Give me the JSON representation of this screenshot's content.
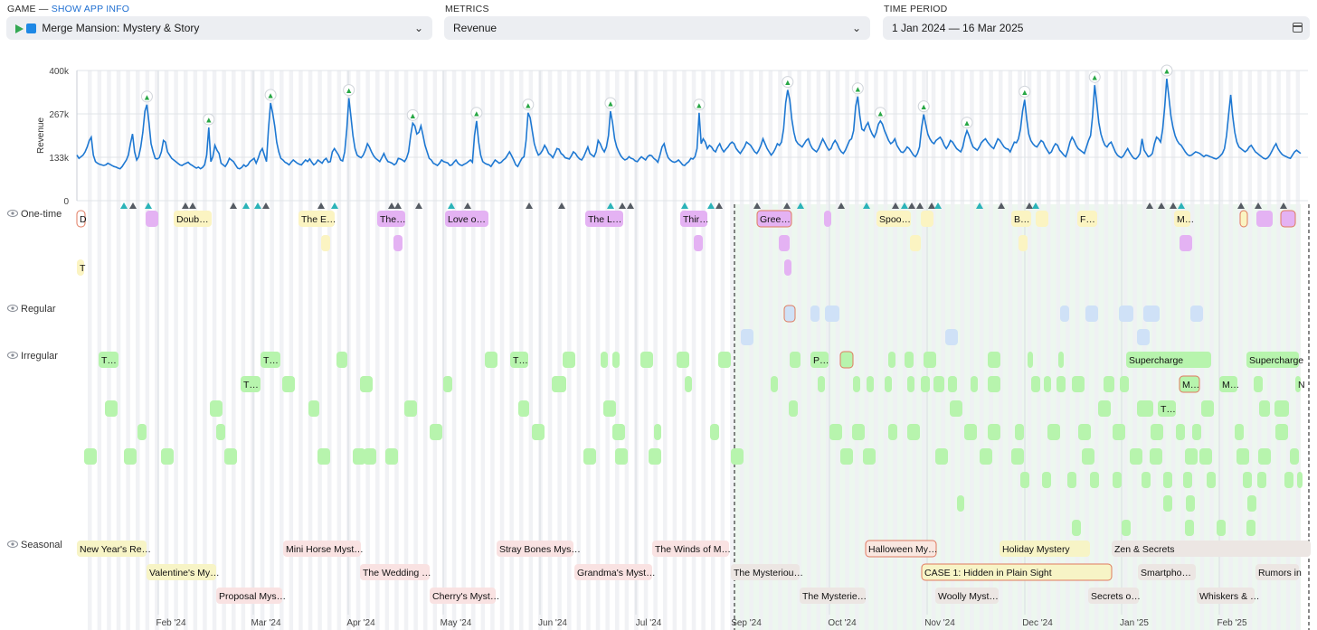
{
  "filters": {
    "game": {
      "label": "GAME",
      "separator": "—",
      "link": "SHOW APP INFO",
      "value": "Merge Mansion: Mystery & Story"
    },
    "metrics": {
      "label": "METRICS",
      "value": "Revenue"
    },
    "period": {
      "label": "TIME PERIOD",
      "value": "1 Jan 2024 — 16 Mar 2025"
    }
  },
  "icons": {
    "game_stores": [
      "google-play-icon",
      "app-store-icon"
    ],
    "dropdown": "chevron-down-icon",
    "calendar": "calendar-icon",
    "visibility": "eye-icon"
  },
  "colors": {
    "line": "#1e78d2",
    "one_time_yellow": "#fbf4c2",
    "one_time_purple": "#e4b2f3",
    "regular": "#cfe1f7",
    "irregular": "#b7f4ad",
    "seasonal_pink": "#f9e2e2",
    "seasonal_yellow": "#f7f4c6",
    "seasonal_gray": "#ece6e3",
    "highlight": "#edf7ef",
    "spike_marker": "#28a745"
  },
  "chart_data": {
    "type": "line",
    "ylabel": "Revenue",
    "yticks": [
      "0",
      "133k",
      "267k",
      "400k"
    ],
    "ylim": [
      0,
      400000
    ],
    "xlim": [
      "2024-01-01",
      "2025-03-16"
    ],
    "xticks": [
      "Feb '24",
      "Mar '24",
      "Apr '24",
      "May '24",
      "Jun '24",
      "Jul '24",
      "Sep '24",
      "Oct '24",
      "Nov '24",
      "Dec '24",
      "Jan '25",
      "Feb '25"
    ],
    "grid": true,
    "series": [
      {
        "values": [
          140000,
          130000,
          135000,
          140000,
          150000,
          165000,
          185000,
          195000,
          140000,
          120000,
          115000,
          112000,
          110000,
          108000,
          110000,
          115000,
          112000,
          108000,
          105000,
          103000,
          100000,
          98000,
          105000,
          115000,
          125000,
          140000,
          175000,
          205000,
          150000,
          125000,
          135000,
          165000,
          210000,
          275000,
          295000,
          240000,
          175000,
          150000,
          130000,
          128000,
          132000,
          150000,
          185000,
          180000,
          150000,
          140000,
          130000,
          125000,
          120000,
          115000,
          110000,
          108000,
          112000,
          115000,
          118000,
          112000,
          108000,
          104000,
          100000,
          103000,
          98000,
          102000,
          110000,
          140000,
          225000,
          120000,
          135000,
          170000,
          155000,
          145000,
          115000,
          110000,
          105000,
          115000,
          130000,
          125000,
          120000,
          110000,
          100000,
          98000,
          102000,
          110000,
          105000,
          110000,
          120000,
          125000,
          130000,
          115000,
          130000,
          150000,
          160000,
          140000,
          120000,
          220000,
          300000,
          270000,
          230000,
          180000,
          150000,
          130000,
          125000,
          118000,
          115000,
          110000,
          118000,
          125000,
          120000,
          115000,
          112000,
          110000,
          118000,
          125000,
          120000,
          128000,
          118000,
          110000,
          115000,
          125000,
          120000,
          115000,
          125000,
          130000,
          118000,
          120000,
          150000,
          160000,
          150000,
          140000,
          125000,
          122000,
          150000,
          220000,
          315000,
          260000,
          200000,
          160000,
          140000,
          135000,
          132000,
          140000,
          155000,
          175000,
          165000,
          150000,
          138000,
          130000,
          125000,
          120000,
          132000,
          145000,
          130000,
          120000,
          118000,
          115000,
          110000,
          115000,
          130000,
          128000,
          125000,
          120000,
          130000,
          150000,
          200000,
          238000,
          230000,
          205000,
          210000,
          230000,
          200000,
          170000,
          150000,
          130000,
          125000,
          115000,
          112000,
          108000,
          115000,
          125000,
          120000,
          118000,
          116000,
          108000,
          110000,
          118000,
          125000,
          115000,
          110000,
          108000,
          112000,
          115000,
          120000,
          125000,
          118000,
          200000,
          245000,
          180000,
          140000,
          120000,
          115000,
          112000,
          110000,
          105000,
          115000,
          125000,
          120000,
          115000,
          118000,
          125000,
          130000,
          140000,
          150000,
          138000,
          125000,
          110000,
          105000,
          118000,
          130000,
          135000,
          185000,
          270000,
          255000,
          215000,
          175000,
          155000,
          140000,
          145000,
          155000,
          170000,
          160000,
          145000,
          140000,
          132000,
          145000,
          160000,
          158000,
          145000,
          140000,
          132000,
          130000,
          128000,
          138000,
          150000,
          145000,
          135000,
          128000,
          125000,
          135000,
          150000,
          165000,
          145000,
          140000,
          135000,
          150000,
          185000,
          175000,
          160000,
          150000,
          165000,
          200000,
          275000,
          240000,
          190000,
          165000,
          150000,
          138000,
          130000,
          125000,
          128000,
          135000,
          130000,
          128000,
          122000,
          120000,
          128000,
          135000,
          130000,
          125000,
          135000,
          140000,
          138000,
          130000,
          125000,
          118000,
          140000,
          165000,
          175000,
          150000,
          132000,
          125000,
          120000,
          118000,
          120000,
          125000,
          118000,
          110000,
          108000,
          115000,
          120000,
          130000,
          128000,
          135000,
          160000,
          270000,
          175000,
          190000,
          180000,
          160000,
          170000,
          165000,
          155000,
          150000,
          165000,
          175000,
          160000,
          150000,
          158000,
          165000,
          175000,
          180000,
          175000,
          160000,
          152000,
          145000,
          155000,
          165000,
          180000,
          175000,
          170000,
          160000,
          150000,
          145000,
          155000,
          170000,
          190000,
          175000,
          160000,
          150000,
          140000,
          148000,
          160000,
          175000,
          170000,
          180000,
          220000,
          300000,
          340000,
          310000,
          250000,
          210000,
          185000,
          175000,
          170000,
          165000,
          175000,
          185000,
          190000,
          172000,
          160000,
          155000,
          150000,
          160000,
          175000,
          190000,
          178000,
          165000,
          155000,
          160000,
          175000,
          185000,
          175000,
          160000,
          150000,
          145000,
          155000,
          170000,
          185000,
          190000,
          215000,
          290000,
          320000,
          260000,
          220000,
          215000,
          230000,
          240000,
          220000,
          205000,
          195000,
          210000,
          235000,
          245000,
          235000,
          215000,
          200000,
          185000,
          175000,
          180000,
          190000,
          170000,
          160000,
          150000,
          148000,
          155000,
          165000,
          160000,
          150000,
          140000,
          135000,
          145000,
          165000,
          225000,
          265000,
          235000,
          205000,
          190000,
          180000,
          175000,
          185000,
          190000,
          195000,
          185000,
          170000,
          160000,
          170000,
          185000,
          180000,
          170000,
          160000,
          155000,
          150000,
          165000,
          195000,
          215000,
          200000,
          180000,
          165000,
          160000,
          155000,
          165000,
          178000,
          185000,
          190000,
          180000,
          172000,
          165000,
          160000,
          175000,
          190000,
          185000,
          175000,
          165000,
          160000,
          158000,
          150000,
          165000,
          180000,
          178000,
          190000,
          220000,
          275000,
          310000,
          250000,
          205000,
          185000,
          175000,
          168000,
          165000,
          175000,
          185000,
          180000,
          165000,
          155000,
          145000,
          150000,
          165000,
          175000,
          170000,
          155000,
          148000,
          140000,
          135000,
          155000,
          180000,
          195000,
          185000,
          170000,
          160000,
          155000,
          150000,
          145000,
          165000,
          185000,
          200000,
          260000,
          355000,
          300000,
          240000,
          205000,
          185000,
          170000,
          165000,
          175000,
          180000,
          165000,
          150000,
          140000,
          135000,
          132000,
          138000,
          150000,
          160000,
          148000,
          138000,
          130000,
          128000,
          135000,
          145000,
          190000,
          155000,
          145000,
          135000,
          138000,
          145000,
          175000,
          195000,
          190000,
          180000,
          220000,
          290000,
          375000,
          320000,
          260000,
          225000,
          200000,
          185000,
          175000,
          170000,
          160000,
          150000,
          142000,
          138000,
          140000,
          145000,
          150000,
          148000,
          145000,
          140000,
          135000,
          140000,
          138000,
          135000,
          133000,
          130000,
          128000,
          132000,
          138000,
          145000,
          160000,
          200000,
          265000,
          325000,
          260000,
          210000,
          180000,
          165000,
          160000,
          155000,
          150000,
          155000,
          165000,
          170000,
          160000,
          150000,
          145000,
          140000,
          135000,
          130000,
          128000,
          132000,
          140000,
          152000,
          165000,
          175000,
          160000,
          150000,
          142000,
          138000,
          135000,
          132000,
          130000,
          140000,
          150000,
          155000,
          150000,
          145000
        ]
      }
    ],
    "spike_labels": [
      "▲",
      "▲",
      "▲",
      "▲",
      "▲",
      "▲",
      "▲",
      "▲",
      "▲",
      "▲",
      "▲",
      "▲",
      "▲",
      "▲",
      "▲",
      "▲",
      "▲"
    ]
  },
  "timeline": {
    "categories": [
      "One-time",
      "Regular",
      "Irregular",
      "Seasonal"
    ],
    "one_time_labels": [
      "D",
      "Doub…",
      "The E…",
      "The…",
      "Love o…",
      "The L…",
      "Thir…",
      "Gree…",
      "Spoo…",
      "B…",
      "F…",
      "M…",
      "T"
    ],
    "irregular_labels": [
      "T…",
      "T…",
      "T…",
      "T…",
      "P…",
      "Supercharge",
      "Supercharge",
      "T…",
      "M…",
      "M…",
      "N"
    ],
    "seasonal_labels": [
      "New Year's Re…",
      "Valentine's My…",
      "Proposal Mys…",
      "Mini Horse Myst…",
      "The Wedding …",
      "Cherry's Myst…",
      "Stray Bones Mys…",
      "Grandma's Myst…",
      "The Winds of M…",
      "The Mysteriou…",
      "The Mysterie…",
      "Halloween My…",
      "CASE 1: Hidden in Plain Sight",
      "Woolly Myst…",
      "Holiday Mystery",
      "Secrets o…",
      "Zen & Secrets",
      "Smartpho…",
      "Whiskers & …",
      "Rumors in"
    ]
  }
}
